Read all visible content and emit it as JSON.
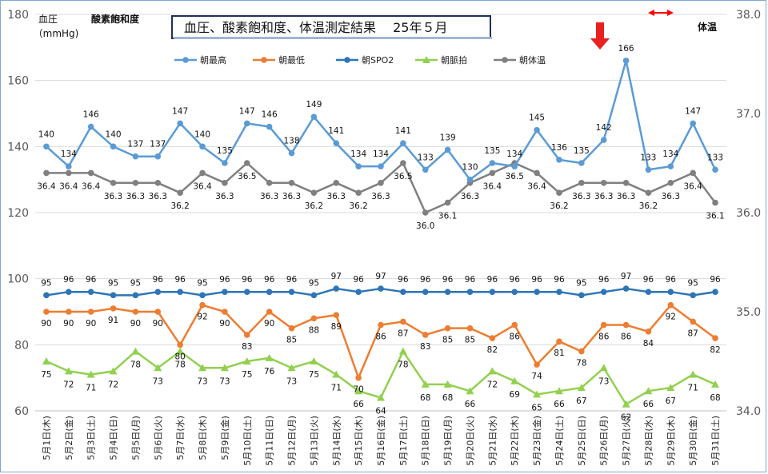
{
  "chart_data": {
    "type": "line",
    "title": "血圧、酸素飽和度、体温測定結果　 25年５月",
    "left_axis": {
      "label_line1": "血圧",
      "label_line2": "（mmHg)",
      "label_spo2": "酸素飽和度",
      "min": 60,
      "max": 180,
      "step": 20,
      "ticks": [
        "60",
        "80",
        "100",
        "120",
        "140",
        "160",
        "180"
      ]
    },
    "right_axis": {
      "label": "体温",
      "min": 34.0,
      "max": 38.0,
      "step": 1.0,
      "ticks": [
        "34.0",
        "35.0",
        "36.0",
        "37.0",
        "38.0"
      ]
    },
    "grid": true,
    "legend_position": "top",
    "categories": [
      "5月1日(木)",
      "5月2日(金)",
      "5月3日(土)",
      "5月4日(日)",
      "5月5日(月)",
      "5月6日(火)",
      "5月7日(水)",
      "5月8日(木)",
      "5月9日(金)",
      "5月10日(土)",
      "5月11日(日)",
      "5月12日(月)",
      "5月13日(火)",
      "5月14日(水)",
      "5月15日(木)",
      "5月16日(金)",
      "5月17日(土)",
      "5月18日(日)",
      "5月19日(月)",
      "5月20日(火)",
      "5月21日(水)",
      "5月22日(木)",
      "5月23日(金)",
      "5月24日(土)",
      "5月25日(日)",
      "5月26日(月)",
      "5月27日(火)",
      "5月28日(水)",
      "5月29日(木)",
      "5月30日(金)",
      "5月31日(土)"
    ],
    "series": [
      {
        "name": "朝最高",
        "axis": "left",
        "color": "#5b9bd5",
        "marker": "circle",
        "values": [
          140,
          134,
          146,
          140,
          137,
          137,
          147,
          140,
          135,
          147,
          146,
          138,
          149,
          141,
          134,
          134,
          141,
          133,
          139,
          130,
          135,
          134,
          145,
          136,
          135,
          142,
          166,
          133,
          134,
          147,
          133
        ]
      },
      {
        "name": "朝最低",
        "axis": "left",
        "color": "#ed7d31",
        "marker": "circle",
        "values": [
          90,
          90,
          90,
          91,
          90,
          90,
          80,
          92,
          90,
          83,
          90,
          85,
          88,
          89,
          70,
          86,
          87,
          83,
          85,
          85,
          82,
          86,
          74,
          81,
          78,
          86,
          86,
          84,
          92,
          87,
          82
        ]
      },
      {
        "name": "朝SPO2",
        "axis": "left",
        "color": "#2e75b6",
        "marker": "circle",
        "values": [
          95,
          96,
          96,
          95,
          95,
          96,
          96,
          95,
          96,
          96,
          96,
          96,
          95,
          97,
          96,
          97,
          96,
          96,
          96,
          96,
          96,
          96,
          96,
          96,
          95,
          96,
          97,
          96,
          96,
          95,
          96
        ]
      },
      {
        "name": "朝脈拍",
        "axis": "left",
        "color": "#92d050",
        "marker": "triangle",
        "values": [
          75,
          72,
          71,
          72,
          78,
          73,
          78,
          73,
          73,
          75,
          76,
          73,
          75,
          71,
          66,
          64,
          78,
          68,
          68,
          66,
          72,
          69,
          65,
          66,
          67,
          73,
          62,
          66,
          67,
          71,
          68
        ]
      },
      {
        "name": "朝体温",
        "axis": "right",
        "color": "#808080",
        "marker": "circle",
        "values": [
          36.4,
          36.4,
          36.4,
          36.3,
          36.3,
          36.3,
          36.2,
          36.4,
          36.3,
          36.5,
          36.3,
          36.3,
          36.2,
          36.3,
          36.2,
          36.3,
          36.5,
          36.0,
          36.1,
          36.3,
          36.4,
          36.5,
          36.4,
          36.2,
          36.3,
          36.3,
          36.3,
          36.2,
          36.3,
          36.4,
          36.1
        ]
      }
    ],
    "annotations": {
      "arrow_down_color": "#e8201f",
      "double_arrow_color": "#ff0000"
    }
  }
}
